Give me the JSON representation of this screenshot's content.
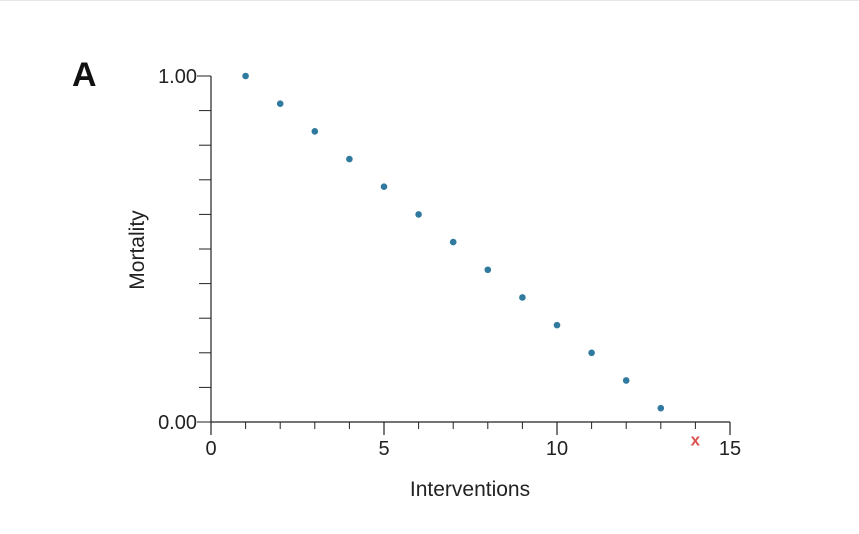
{
  "panel_label": "A",
  "chart_data": {
    "type": "scatter",
    "xlabel": "Interventions",
    "ylabel": "Mortality",
    "xlim": [
      0,
      15
    ],
    "ylim": [
      0,
      1
    ],
    "x_ticks_major": [
      0,
      5,
      10,
      15
    ],
    "x_ticks_minor": [
      1,
      2,
      3,
      4,
      6,
      7,
      8,
      9,
      11,
      12,
      13,
      14
    ],
    "y_tick_labels": [
      "0.00",
      "1.00"
    ],
    "y_ticks": [
      0,
      0.1,
      0.2,
      0.3,
      0.4,
      0.5,
      0.6,
      0.7,
      0.8,
      0.9,
      1.0
    ],
    "grid": false,
    "legend": "none",
    "series": [
      {
        "marker": "circle",
        "color": "#2f7a9e",
        "points": [
          {
            "x": 1,
            "y": 1.0
          },
          {
            "x": 2,
            "y": 0.92
          },
          {
            "x": 3,
            "y": 0.84
          },
          {
            "x": 4,
            "y": 0.76
          },
          {
            "x": 5,
            "y": 0.68
          },
          {
            "x": 6,
            "y": 0.6
          },
          {
            "x": 7,
            "y": 0.52
          },
          {
            "x": 8,
            "y": 0.44
          },
          {
            "x": 9,
            "y": 0.36
          },
          {
            "x": 10,
            "y": 0.28
          },
          {
            "x": 11,
            "y": 0.2
          },
          {
            "x": 12,
            "y": 0.12
          },
          {
            "x": 13,
            "y": 0.04
          }
        ]
      },
      {
        "marker": "x",
        "color": "#d9534f",
        "marker_text": "x",
        "points": [
          {
            "x": 14,
            "y": -0.05
          }
        ]
      }
    ]
  }
}
